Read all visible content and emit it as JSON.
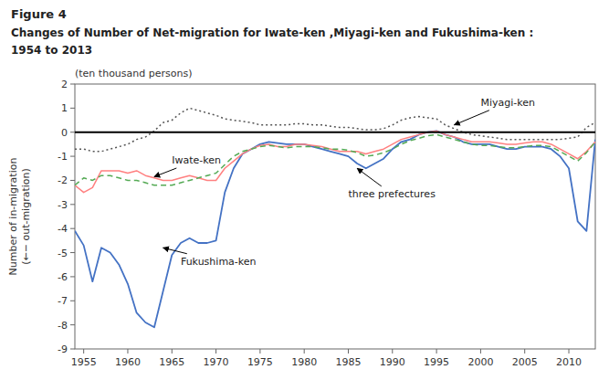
{
  "chart_data": {
    "type": "line",
    "title": "Figure 4",
    "subtitle": [
      "Changes of Number of Net-migration for Iwate-ken ,Miyagi-ken and Fukushima-ken :",
      "1954 to 2013"
    ],
    "ylabel": [
      "Number of in-migration",
      "(←− out-migration)"
    ],
    "y_units_label": "(ten thousand persons)",
    "x": [
      1954,
      1955,
      1956,
      1957,
      1958,
      1959,
      1960,
      1961,
      1962,
      1963,
      1964,
      1965,
      1966,
      1967,
      1968,
      1969,
      1970,
      1971,
      1972,
      1973,
      1974,
      1975,
      1976,
      1977,
      1978,
      1979,
      1980,
      1981,
      1982,
      1983,
      1984,
      1985,
      1986,
      1987,
      1988,
      1989,
      1990,
      1991,
      1992,
      1993,
      1994,
      1995,
      1996,
      1997,
      1998,
      1999,
      2000,
      2001,
      2002,
      2003,
      2004,
      2005,
      2006,
      2007,
      2008,
      2009,
      2010,
      2011,
      2012,
      2013
    ],
    "series": [
      {
        "color": "#4472C4",
        "line_style": "solid",
        "values": [
          -4.1,
          -4.7,
          -6.2,
          -4.8,
          -5.0,
          -5.5,
          -6.3,
          -7.5,
          -7.9,
          -8.1,
          -6.6,
          -5.1,
          -4.6,
          -4.4,
          -4.6,
          -4.6,
          -4.5,
          -2.5,
          -1.5,
          -0.9,
          -0.7,
          -0.5,
          -0.4,
          -0.45,
          -0.5,
          -0.5,
          -0.5,
          -0.6,
          -0.7,
          -0.8,
          -0.9,
          -1.0,
          -1.3,
          -1.5,
          -1.3,
          -1.1,
          -0.7,
          -0.4,
          -0.3,
          -0.1,
          0.0,
          0.05,
          -0.1,
          -0.2,
          -0.4,
          -0.5,
          -0.5,
          -0.5,
          -0.6,
          -0.7,
          -0.7,
          -0.6,
          -0.6,
          -0.6,
          -0.7,
          -1.0,
          -1.5,
          -3.7,
          -4.1,
          -0.3
        ]
      },
      {
        "color": "#FF8080",
        "line_style": "solid",
        "values": [
          -2.2,
          -2.5,
          -2.3,
          -1.6,
          -1.6,
          -1.6,
          -1.7,
          -1.6,
          -1.8,
          -1.9,
          -2.0,
          -2.0,
          -1.9,
          -1.8,
          -1.9,
          -2.0,
          -2.0,
          -1.5,
          -1.2,
          -0.9,
          -0.7,
          -0.55,
          -0.5,
          -0.6,
          -0.6,
          -0.5,
          -0.5,
          -0.55,
          -0.6,
          -0.7,
          -0.8,
          -0.8,
          -0.8,
          -0.9,
          -0.8,
          -0.7,
          -0.5,
          -0.3,
          -0.2,
          -0.1,
          0.0,
          0.05,
          -0.1,
          -0.2,
          -0.3,
          -0.4,
          -0.4,
          -0.4,
          -0.45,
          -0.5,
          -0.5,
          -0.45,
          -0.4,
          -0.4,
          -0.5,
          -0.7,
          -0.9,
          -1.1,
          -0.8,
          -0.4
        ]
      },
      {
        "color": "#555555",
        "line_style": "dotted",
        "values": [
          -0.7,
          -0.7,
          -0.8,
          -0.8,
          -0.7,
          -0.6,
          -0.5,
          -0.3,
          -0.2,
          0.05,
          0.4,
          0.5,
          0.8,
          1.0,
          0.9,
          0.8,
          0.7,
          0.55,
          0.5,
          0.45,
          0.4,
          0.3,
          0.3,
          0.3,
          0.3,
          0.35,
          0.35,
          0.3,
          0.3,
          0.25,
          0.2,
          0.2,
          0.15,
          0.1,
          0.1,
          0.15,
          0.3,
          0.5,
          0.6,
          0.65,
          0.6,
          0.55,
          0.3,
          0.15,
          0.0,
          -0.1,
          -0.15,
          -0.2,
          -0.25,
          -0.3,
          -0.3,
          -0.3,
          -0.3,
          -0.3,
          -0.3,
          -0.3,
          -0.25,
          -0.2,
          0.2,
          0.4
        ]
      },
      {
        "color": "#55AA55",
        "line_style": "dashed",
        "values": [
          -2.2,
          -1.9,
          -2.0,
          -1.8,
          -1.8,
          -1.9,
          -2.0,
          -2.0,
          -2.1,
          -2.2,
          -2.2,
          -2.2,
          -2.1,
          -2.0,
          -1.9,
          -1.8,
          -1.7,
          -1.35,
          -1.0,
          -0.8,
          -0.7,
          -0.6,
          -0.55,
          -0.6,
          -0.65,
          -0.6,
          -0.6,
          -0.6,
          -0.65,
          -0.7,
          -0.7,
          -0.75,
          -0.85,
          -1.0,
          -0.95,
          -0.85,
          -0.7,
          -0.5,
          -0.35,
          -0.25,
          -0.15,
          -0.1,
          -0.2,
          -0.3,
          -0.4,
          -0.5,
          -0.55,
          -0.55,
          -0.6,
          -0.65,
          -0.65,
          -0.6,
          -0.55,
          -0.55,
          -0.6,
          -0.8,
          -1.0,
          -1.2,
          -0.85,
          -0.4
        ]
      }
    ],
    "annotations": [
      {
        "text": "Miyagi-ken",
        "xy": [
          1997,
          0.3
        ],
        "xytext": [
          2000,
          1.1
        ]
      },
      {
        "text": "Iwate-ken",
        "xy": [
          1963,
          -1.85
        ],
        "xytext": [
          1965,
          -1.3
        ]
      },
      {
        "text": "Fukushima-ken",
        "xy": [
          1964,
          -4.8
        ],
        "xytext": [
          1966,
          -5.5
        ]
      },
      {
        "text": "three prefectures",
        "xy": [
          1986,
          -1.5
        ],
        "xytext": [
          1985,
          -2.7
        ]
      }
    ],
    "xlim": [
      1954,
      2013
    ],
    "ylim": [
      -9,
      2
    ],
    "xticks": [
      1955,
      1960,
      1965,
      1970,
      1975,
      1980,
      1985,
      1990,
      1995,
      2000,
      2005,
      2010
    ],
    "yticks": [
      -9,
      -8,
      -7,
      -6,
      -5,
      -4,
      -3,
      -2,
      -1,
      0,
      1,
      2
    ],
    "grid": false
  }
}
